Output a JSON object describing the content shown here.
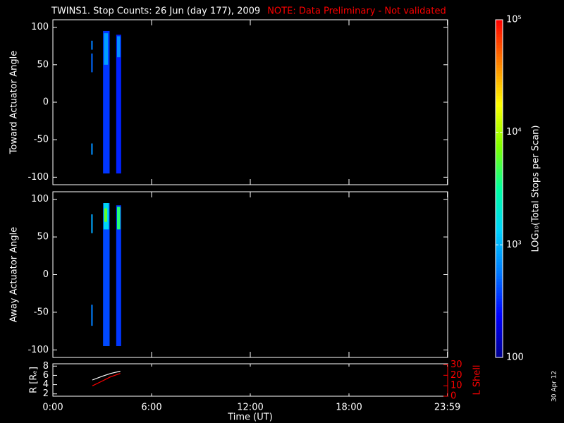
{
  "chart_data": [
    {
      "type": "spectrogram",
      "title": "TWINS1. Stop Counts: 26 Jun (day 177), 2009",
      "note": "NOTE: Data Preliminary - Not validated",
      "note_color": "#ff0000",
      "ylabel": "Toward Actuator Angle",
      "xlim": [
        0,
        24
      ],
      "ylim": [
        -110,
        110
      ],
      "yticks": [
        -100,
        -50,
        0,
        50,
        100
      ],
      "cells": [
        {
          "t0": 2.33,
          "t1": 2.42,
          "a0": -70,
          "a1": -55,
          "v": 700
        },
        {
          "t0": 2.33,
          "t1": 2.42,
          "a0": 40,
          "a1": 65,
          "v": 500
        },
        {
          "t0": 2.33,
          "t1": 2.42,
          "a0": 70,
          "a1": 82,
          "v": 600
        },
        {
          "t0": 3.05,
          "t1": 3.45,
          "a0": -95,
          "a1": 95,
          "v": 350
        },
        {
          "t0": 3.1,
          "t1": 3.35,
          "a0": 50,
          "a1": 92,
          "v": 800
        },
        {
          "t0": 3.85,
          "t1": 4.15,
          "a0": -95,
          "a1": 90,
          "v": 300
        },
        {
          "t0": 3.9,
          "t1": 4.1,
          "a0": 60,
          "a1": 88,
          "v": 700
        }
      ]
    },
    {
      "type": "spectrogram",
      "ylabel": "Away Actuator Angle",
      "xlim": [
        0,
        24
      ],
      "ylim": [
        -110,
        110
      ],
      "yticks": [
        -100,
        -50,
        0,
        50,
        100
      ],
      "cells": [
        {
          "t0": 2.33,
          "t1": 2.42,
          "a0": -68,
          "a1": -40,
          "v": 600
        },
        {
          "t0": 2.33,
          "t1": 2.42,
          "a0": 55,
          "a1": 80,
          "v": 900
        },
        {
          "t0": 3.05,
          "t1": 3.45,
          "a0": -95,
          "a1": 95,
          "v": 400
        },
        {
          "t0": 3.08,
          "t1": 3.4,
          "a0": 60,
          "a1": 95,
          "v": 1500
        },
        {
          "t0": 3.12,
          "t1": 3.3,
          "a0": 70,
          "a1": 88,
          "v": 6000
        },
        {
          "t0": 3.85,
          "t1": 4.15,
          "a0": -95,
          "a1": 92,
          "v": 350
        },
        {
          "t0": 3.9,
          "t1": 4.1,
          "a0": 60,
          "a1": 90,
          "v": 4000
        }
      ]
    },
    {
      "type": "line",
      "xlabel": "Time (UT)",
      "xlim": [
        0,
        24
      ],
      "xticks": [
        {
          "value": 0,
          "label": "0:00"
        },
        {
          "value": 6,
          "label": "6:00"
        },
        {
          "value": 12,
          "label": "12:00"
        },
        {
          "value": 18,
          "label": "18:00"
        },
        {
          "value": 23.983,
          "label": "23:59"
        }
      ],
      "ylabel": "R [Rₑ]",
      "ylim": [
        1.5,
        8.5
      ],
      "yticks": [
        2,
        4,
        6,
        8
      ],
      "y2label": "L Shell",
      "y2color": "#ff0000",
      "y2lim": [
        0,
        31
      ],
      "y2ticks": [
        0,
        10,
        20,
        30
      ],
      "x": [
        2.4,
        3.0,
        3.5,
        4.1
      ],
      "series": [
        {
          "color": "#ffffff",
          "values": [
            5.0,
            5.8,
            6.4,
            6.9
          ]
        },
        {
          "color": "#ff0000",
          "axis": "y2",
          "values": [
            9.9,
            14.5,
            18.5,
            21.8
          ]
        }
      ]
    },
    {
      "type": "colorbar",
      "label": "LOG₁₀(Total Stops per Scan)",
      "log": true,
      "ylim": [
        100,
        100000
      ],
      "yticks": [
        {
          "value": 100,
          "label": "100"
        },
        {
          "value": 1000,
          "label": "10³"
        },
        {
          "value": 10000,
          "label": "10⁴"
        },
        {
          "value": 100000,
          "label": "10⁵"
        }
      ],
      "colormap": [
        "#00008c",
        "#0000ff",
        "#0078ff",
        "#00d2ff",
        "#00ffa0",
        "#80ff00",
        "#ffff00",
        "#ff8000",
        "#ff0000"
      ]
    }
  ],
  "date_stamp": "30 Apr 12"
}
